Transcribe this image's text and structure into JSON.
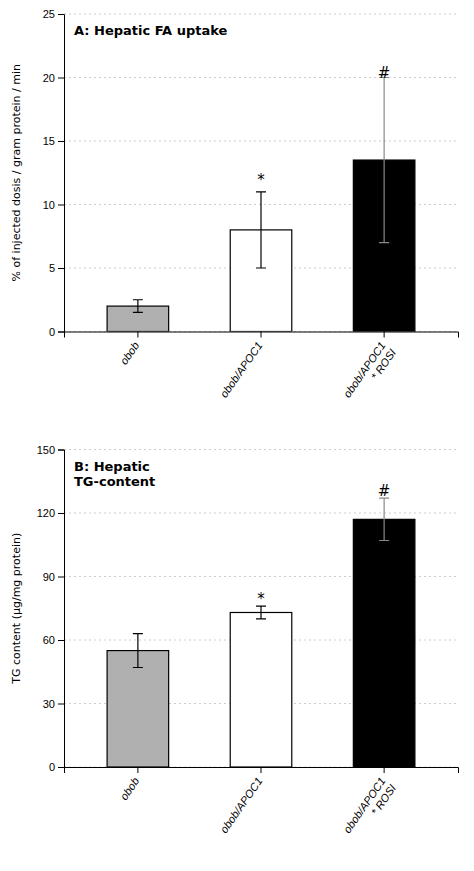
{
  "chart_data": [
    {
      "type": "bar",
      "title": "A: Hepatic FA uptake",
      "ylabel": "% of injected dosis / gram protein / min",
      "categories": [
        "obob",
        "obob/APOC1",
        "obob/APOC1\n* ROSI"
      ],
      "values": [
        2.0,
        8.0,
        13.5
      ],
      "errors": [
        0.5,
        3.0,
        6.5
      ],
      "colors": [
        "#b0b0b0",
        "#ffffff",
        "#000000"
      ],
      "ylim": [
        0,
        25
      ],
      "yticks": [
        0,
        5,
        10,
        15,
        20,
        25
      ],
      "grid": true,
      "annotations": [
        {
          "text": "*",
          "category": "obob/APOC1",
          "y": 11.5
        },
        {
          "text": "#",
          "category": "obob/APOC1\n* ROSI",
          "y": 20.0
        }
      ]
    },
    {
      "type": "bar",
      "title": "B: Hepatic\nTG-content",
      "ylabel": "TG content (µg/mg protein)",
      "categories": [
        "obob",
        "obob/APOC1",
        "obob/APOC1\n* ROSI"
      ],
      "values": [
        55.0,
        73.0,
        117.0
      ],
      "errors": [
        8.0,
        3.0,
        10.0
      ],
      "colors": [
        "#b0b0b0",
        "#ffffff",
        "#000000"
      ],
      "ylim": [
        0,
        150
      ],
      "yticks": [
        0,
        30,
        60,
        90,
        120,
        150
      ],
      "grid": true,
      "annotations": [
        {
          "text": "*",
          "category": "obob/APOC1",
          "y": 77.0
        },
        {
          "text": "#",
          "category": "obob/APOC1\n* ROSI",
          "y": 128.0
        }
      ]
    }
  ]
}
